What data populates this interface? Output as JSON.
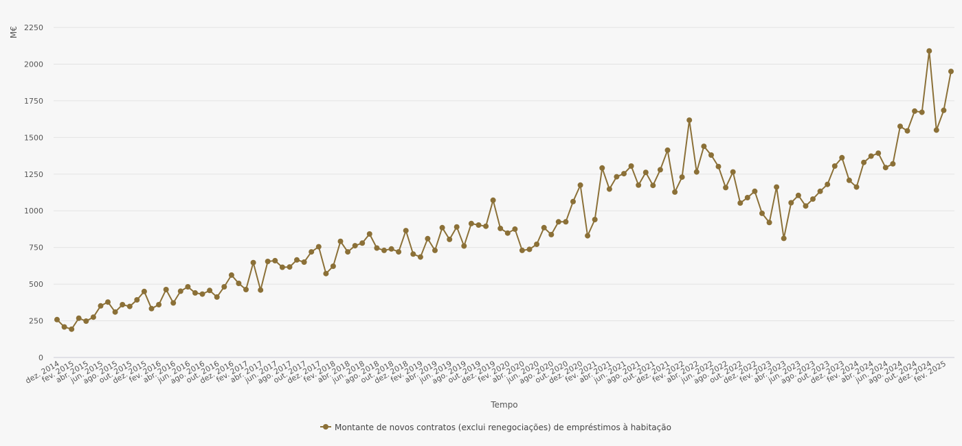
{
  "chart_data": {
    "type": "line",
    "title": "",
    "xlabel": "Tempo",
    "ylabel": "M€",
    "ylim": [
      0,
      2250
    ],
    "yticks": [
      0,
      250,
      500,
      750,
      1000,
      1250,
      1500,
      1750,
      2000,
      2250
    ],
    "grid": true,
    "legend_position": "bottom-center",
    "color": "#8b7037",
    "x": [
      "dez. 2014",
      "jan. 2015",
      "fev. 2015",
      "mar. 2015",
      "abr. 2015",
      "mai. 2015",
      "jun. 2015",
      "jul. 2015",
      "ago. 2015",
      "set. 2015",
      "out. 2015",
      "nov. 2015",
      "dez. 2015",
      "jan. 2016",
      "fev. 2016",
      "mar. 2016",
      "abr. 2016",
      "mai. 2016",
      "jun. 2016",
      "jul. 2016",
      "ago. 2016",
      "set. 2016",
      "out. 2016",
      "nov. 2016",
      "dez. 2016",
      "jan. 2017",
      "fev. 2017",
      "mar. 2017",
      "abr. 2017",
      "mai. 2017",
      "jun. 2017",
      "jul. 2017",
      "ago. 2017",
      "set. 2017",
      "out. 2017",
      "nov. 2017",
      "dez. 2017",
      "jan. 2018",
      "fev. 2018",
      "mar. 2018",
      "abr. 2018",
      "mai. 2018",
      "jun. 2018",
      "jul. 2018",
      "ago. 2018",
      "set. 2018",
      "out. 2018",
      "nov. 2018",
      "dez. 2018",
      "jan. 2019",
      "fev. 2019",
      "mar. 2019",
      "abr. 2019",
      "mai. 2019",
      "jun. 2019",
      "jul. 2019",
      "ago. 2019",
      "set. 2019",
      "out. 2019",
      "nov. 2019",
      "dez. 2019",
      "jan. 2020",
      "fev. 2020",
      "mar. 2020",
      "abr. 2020",
      "mai. 2020",
      "jun. 2020",
      "jul. 2020",
      "ago. 2020",
      "set. 2020",
      "out. 2020",
      "nov. 2020",
      "dez. 2020",
      "jan. 2021",
      "fev. 2021",
      "mar. 2021",
      "abr. 2021",
      "mai. 2021",
      "jun. 2021",
      "jul. 2021",
      "ago. 2021",
      "set. 2021",
      "out. 2021",
      "nov. 2021",
      "dez. 2021",
      "jan. 2022",
      "fev. 2022",
      "mar. 2022",
      "abr. 2022",
      "mai. 2022",
      "jun. 2022",
      "jul. 2022",
      "ago. 2022",
      "set. 2022",
      "out. 2022",
      "nov. 2022",
      "dez. 2022",
      "jan. 2023",
      "fev. 2023",
      "mar. 2023",
      "abr. 2023",
      "mai. 2023",
      "jun. 2023",
      "jul. 2023",
      "ago. 2023",
      "set. 2023",
      "out. 2023",
      "nov. 2023",
      "dez. 2023",
      "jan. 2024",
      "fev. 2024",
      "mar. 2024",
      "abr. 2024",
      "mai. 2024",
      "jun. 2024",
      "jul. 2024",
      "ago. 2024",
      "set. 2024",
      "out. 2024",
      "nov. 2024",
      "dez. 2024",
      "jan. 2025",
      "fev. 2025",
      "mar. 2025"
    ],
    "xtick_labels": [
      "dez. 2014",
      "fev. 2015",
      "abr. 2015",
      "jun. 2015",
      "ago. 2015",
      "out. 2015",
      "dez. 2015",
      "fev. 2016",
      "abr. 2016",
      "jun. 2016",
      "ago. 2016",
      "out. 2016",
      "dez. 2016",
      "fev. 2017",
      "abr. 2017",
      "jun. 2017",
      "ago. 2017",
      "out. 2017",
      "dez. 2017",
      "fev. 2018",
      "abr. 2018",
      "jun. 2018",
      "ago. 2018",
      "out. 2018",
      "dez. 2018",
      "fev. 2019",
      "abr. 2019",
      "jun. 2019",
      "ago. 2019",
      "out. 2019",
      "dez. 2019",
      "fev. 2020",
      "abr. 2020",
      "jun. 2020",
      "ago. 2020",
      "out. 2020",
      "dez. 2020",
      "fev. 2021",
      "abr. 2021",
      "jun. 2021",
      "ago. 2021",
      "out. 2021",
      "dez. 2021",
      "fev. 2022",
      "abr. 2022",
      "jun. 2022",
      "ago. 2022",
      "out. 2022",
      "dez. 2022",
      "fev. 2023",
      "abr. 2023",
      "jun. 2023",
      "ago. 2023",
      "out. 2023",
      "dez. 2023",
      "fev. 2024",
      "abr. 2024",
      "jun. 2024",
      "ago. 2024",
      "out. 2024",
      "dez. 2024",
      "fev. 2025"
    ],
    "series": [
      {
        "name": "Montante de novos contratos (exclui renegociações) de empréstimos à habitação",
        "values": [
          258,
          208,
          193,
          268,
          248,
          275,
          352,
          378,
          310,
          360,
          348,
          393,
          450,
          333,
          360,
          463,
          372,
          452,
          482,
          440,
          432,
          457,
          412,
          482,
          562,
          505,
          463,
          647,
          460,
          655,
          660,
          615,
          617,
          665,
          650,
          720,
          755,
          572,
          622,
          792,
          720,
          762,
          780,
          842,
          746,
          730,
          740,
          720,
          865,
          705,
          685,
          810,
          730,
          885,
          805,
          890,
          760,
          913,
          903,
          895,
          1072,
          880,
          848,
          875,
          730,
          737,
          772,
          885,
          838,
          925,
          925,
          1063,
          1175,
          830,
          940,
          1292,
          1148,
          1232,
          1253,
          1305,
          1175,
          1262,
          1173,
          1280,
          1413,
          1128,
          1230,
          1618,
          1265,
          1440,
          1380,
          1302,
          1158,
          1265,
          1053,
          1090,
          1133,
          983,
          920,
          1162,
          812,
          1055,
          1105,
          1033,
          1080,
          1133,
          1180,
          1305,
          1362,
          1208,
          1162,
          1330,
          1373,
          1393,
          1295,
          1320,
          1576,
          1545,
          1680,
          1672,
          2090,
          1550,
          1685,
          1950
        ]
      }
    ]
  }
}
